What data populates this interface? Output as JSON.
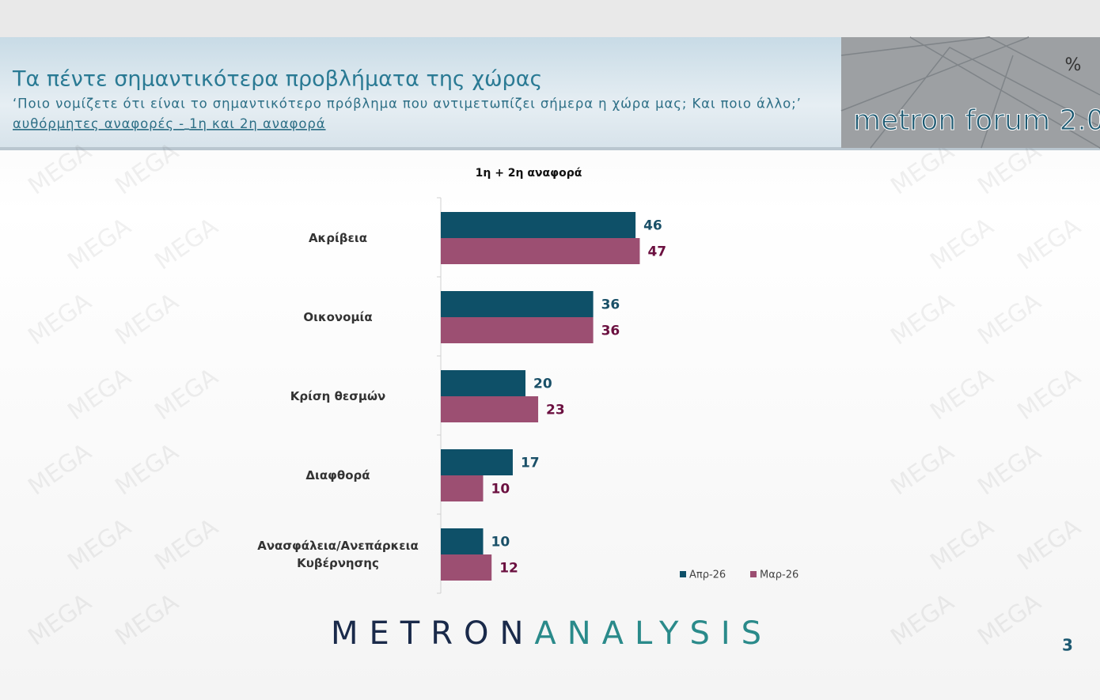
{
  "header": {
    "title": "Τα πέντε σημαντικότερα προβλήματα της χώρας",
    "subtitle": "‘Ποιο νομίζετε ότι είναι το σημαντικότερο πρόβλημα που αντιμετωπίζει σήμερα η χώρα μας; Και ποιο άλλο;’",
    "note_left": "αυθόρμητες αναφορές -",
    "note_right": "1η και 2η αναφορά"
  },
  "logo": {
    "text": "metron forum 2.0",
    "symbol": "%"
  },
  "watermark": "MEGA",
  "chart_data": {
    "type": "hbar",
    "title": "1η + 2η αναφορά",
    "categories": [
      "Ακρίβεια",
      "Οικονομία",
      "Κρίση θεσμών",
      "Διαφθορά",
      "Ανασφάλεια/Ανεπάρκεια Κυβέρνησης"
    ],
    "series": [
      {
        "name": "Απρ-26",
        "color": "#0e5068",
        "label_color": "#1a5068",
        "values": [
          46,
          36,
          20,
          17,
          10
        ]
      },
      {
        "name": "Μαρ-26",
        "color": "#9c4f72",
        "label_color": "#6b1040",
        "values": [
          47,
          36,
          23,
          10,
          12
        ]
      }
    ]
  },
  "footer": {
    "brand_left": "METRON",
    "brand_right": "ANALYSIS",
    "page": "3"
  }
}
